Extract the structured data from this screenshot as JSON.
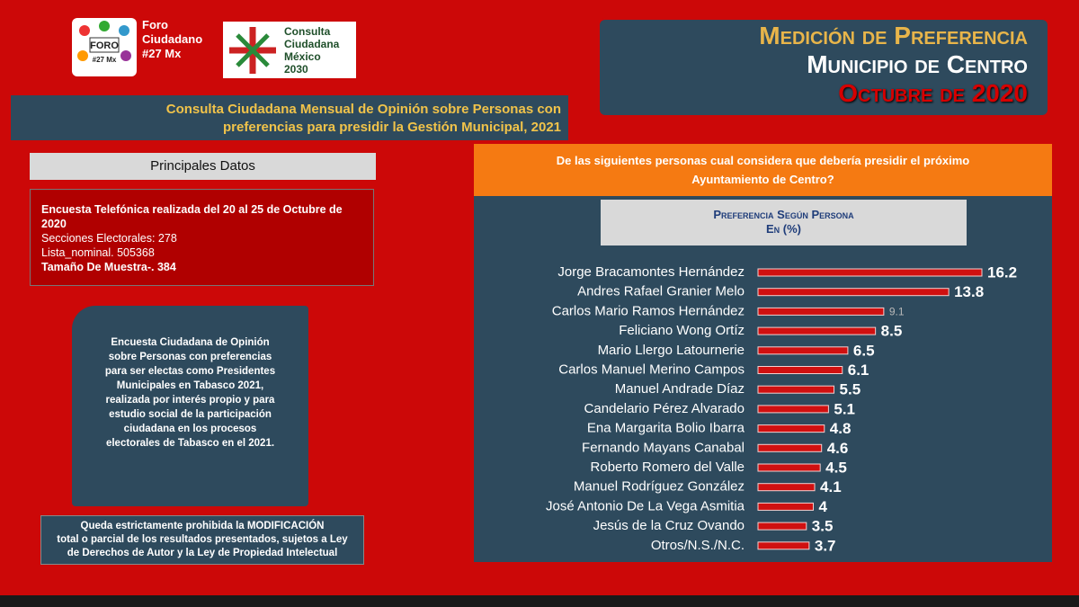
{
  "logo1": {
    "lines": [
      "FORO",
      "#27 Mx"
    ]
  },
  "foro": {
    "lines": [
      "Foro",
      "Ciudadano",
      "#27 Mx"
    ]
  },
  "logo2": {
    "lines": [
      "Consulta",
      "Ciudadana",
      "México",
      "2030"
    ]
  },
  "header": {
    "lines": [
      "Medición de Preferencia",
      "Municipio de Centro",
      "Octubre de 2020"
    ]
  },
  "subtitle": {
    "lines": [
      "Consulta Ciudadana Mensual de Opinión sobre Personas con",
      "preferencias  para presidir la Gestión Municipal,  2021"
    ]
  },
  "datos": {
    "title": "Principales Datos",
    "lines": [
      "Encuesta Telefónica realizada del 20 al 25 de Octubre de 2020",
      "Secciones Electorales: 278",
      "Lista_nominal. 505368",
      "Tamaño De Muestra-. 384"
    ]
  },
  "info": {
    "lines": [
      "Encuesta Ciudadana de Opinión",
      "sobre Personas con preferencias",
      "para ser electas como Presidentes",
      "Municipales en Tabasco 2021,",
      "realizada por interés propio y para",
      "estudio social de la participación",
      "ciudadana en los procesos",
      "electorales de Tabasco en el 2021."
    ]
  },
  "notice": {
    "lines": [
      "Queda estrictamente prohibida la MODIFICACIÓN",
      "total o parcial de los resultados presentados, sujetos a Ley",
      "de Derechos de Autor y la Ley de Propiedad Intelectual"
    ]
  },
  "question": {
    "lines": [
      "De las siguientes personas cual considera que debería presidir el próximo",
      "Ayuntamiento de Centro?"
    ]
  },
  "chart_data": {
    "type": "bar",
    "orientation": "horizontal",
    "title_lines": [
      "Preferencia Según Persona",
      "En (%)"
    ],
    "color": "#d01010",
    "categories": [
      "Jorge Bracamontes Hernández",
      "Andres Rafael Granier Melo",
      "Carlos Mario Ramos Hernández",
      "Feliciano Wong Ortíz",
      "Mario Llergo Latournerie",
      "Carlos Manuel Merino Campos",
      "Manuel Andrade Díaz",
      "Candelario Pérez Alvarado",
      "Ena Margarita Bolio Ibarra",
      "Fernando Mayans Canabal",
      "Roberto Romero del Valle",
      "Manuel Rodríguez González",
      "José Antonio De La Vega Asmitia",
      "Jesús de la Cruz Ovando",
      "Otros/N.S./N.C."
    ],
    "values": [
      16.2,
      13.8,
      9.1,
      8.5,
      6.5,
      6.1,
      5.5,
      5.1,
      4.8,
      4.6,
      4.5,
      4.1,
      4,
      3.5,
      3.7
    ]
  }
}
